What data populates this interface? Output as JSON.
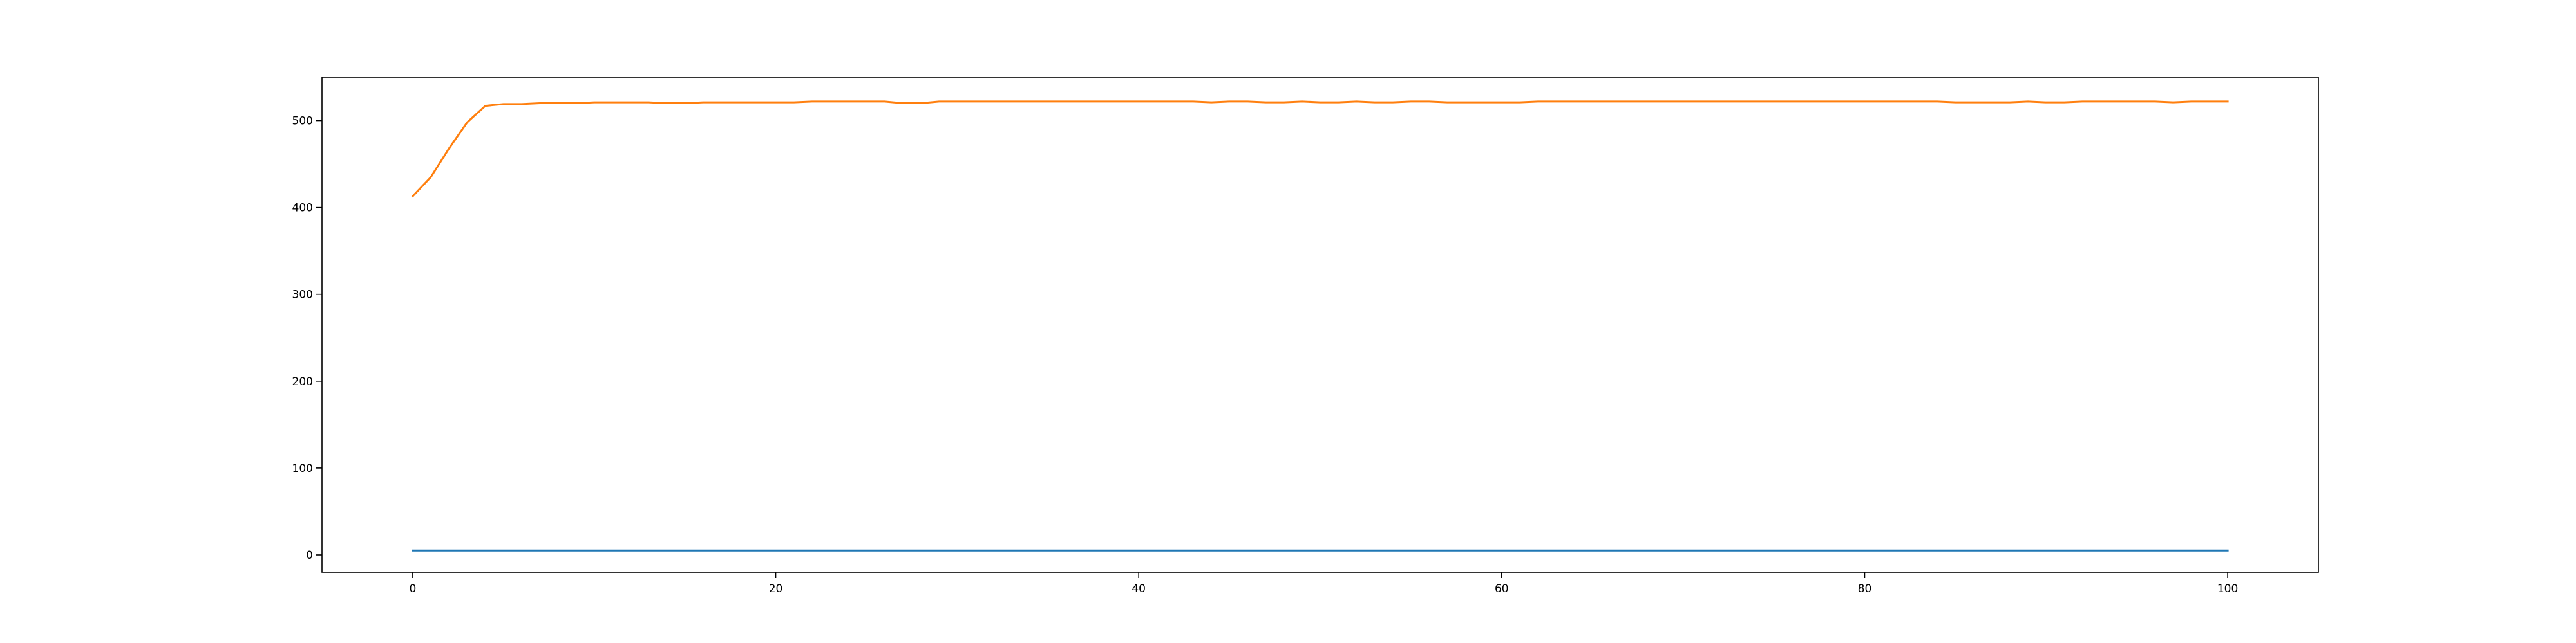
{
  "chart_data": {
    "type": "line",
    "title": "",
    "xlabel": "",
    "ylabel": "",
    "xlim": [
      -5,
      105
    ],
    "ylim": [
      -20,
      550
    ],
    "xticks": [
      0,
      20,
      40,
      60,
      80,
      100
    ],
    "yticks": [
      0,
      100,
      200,
      300,
      400,
      500
    ],
    "grid": false,
    "legend": "none",
    "series": [
      {
        "color": "#1f77b4",
        "x": [
          0,
          100
        ],
        "y": [
          5,
          5
        ]
      },
      {
        "color": "#ff7f0e",
        "x": [
          0,
          1,
          2,
          3,
          4,
          5,
          6,
          7,
          8,
          9,
          10,
          11,
          12,
          13,
          14,
          15,
          16,
          17,
          18,
          19,
          20,
          21,
          22,
          23,
          24,
          25,
          26,
          27,
          28,
          29,
          30,
          31,
          32,
          33,
          34,
          35,
          36,
          37,
          38,
          39,
          40,
          41,
          42,
          43,
          44,
          45,
          46,
          47,
          48,
          49,
          50,
          51,
          52,
          53,
          54,
          55,
          56,
          57,
          58,
          59,
          60,
          61,
          62,
          63,
          64,
          65,
          66,
          67,
          68,
          69,
          70,
          71,
          72,
          73,
          74,
          75,
          76,
          77,
          78,
          79,
          80,
          81,
          82,
          83,
          84,
          85,
          86,
          87,
          88,
          89,
          90,
          91,
          92,
          93,
          94,
          95,
          96,
          97,
          98,
          99,
          100
        ],
        "y": [
          413,
          435,
          468,
          498,
          517,
          519,
          519,
          520,
          520,
          520,
          521,
          521,
          521,
          521,
          520,
          520,
          521,
          521,
          521,
          521,
          521,
          521,
          522,
          522,
          522,
          522,
          522,
          520,
          520,
          522,
          522,
          522,
          522,
          522,
          522,
          522,
          522,
          522,
          522,
          522,
          522,
          522,
          522,
          522,
          521,
          522,
          522,
          521,
          521,
          522,
          521,
          521,
          522,
          521,
          521,
          522,
          522,
          521,
          521,
          521,
          521,
          521,
          522,
          522,
          522,
          522,
          522,
          522,
          522,
          522,
          522,
          522,
          522,
          522,
          522,
          522,
          522,
          522,
          522,
          522,
          522,
          522,
          522,
          522,
          522,
          521,
          521,
          521,
          521,
          522,
          521,
          521,
          522,
          522,
          522,
          522,
          522,
          521,
          522,
          522,
          522
        ]
      }
    ]
  }
}
